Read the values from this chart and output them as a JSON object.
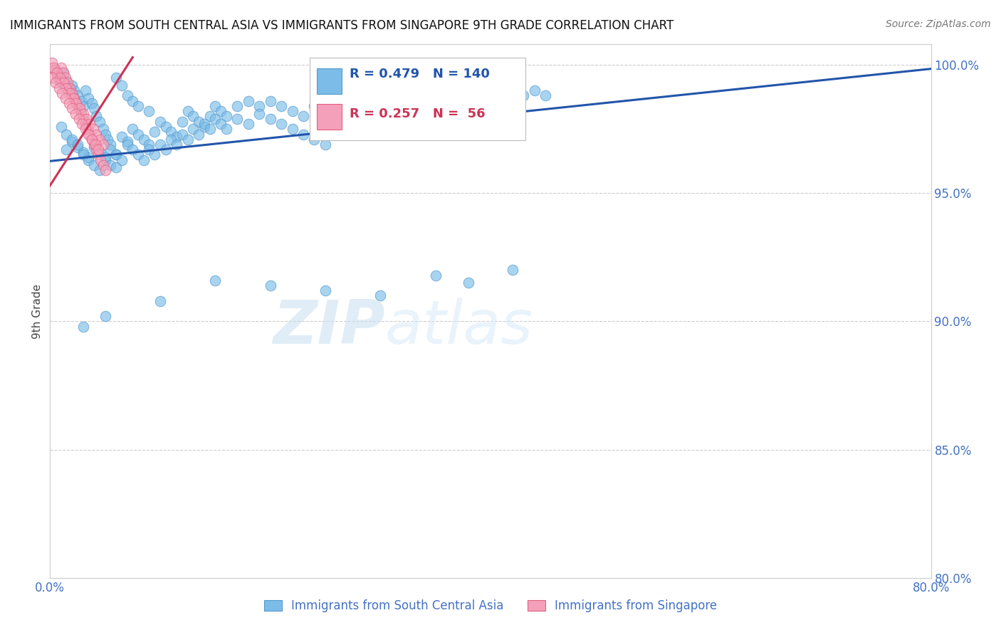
{
  "title": "IMMIGRANTS FROM SOUTH CENTRAL ASIA VS IMMIGRANTS FROM SINGAPORE 9TH GRADE CORRELATION CHART",
  "source": "Source: ZipAtlas.com",
  "ylabel": "9th Grade",
  "xmin": 0.0,
  "xmax": 0.8,
  "ymin": 0.8,
  "ymax": 1.008,
  "yticks": [
    0.8,
    0.85,
    0.9,
    0.95,
    1.0
  ],
  "yticklabels": [
    "80.0%",
    "85.0%",
    "90.0%",
    "95.0%",
    "100.0%"
  ],
  "legend_blue_label": "Immigrants from South Central Asia",
  "legend_pink_label": "Immigrants from Singapore",
  "R_blue": 0.479,
  "N_blue": 140,
  "R_pink": 0.257,
  "N_pink": 56,
  "blue_color": "#7bbde8",
  "pink_color": "#f5a0ba",
  "blue_edge_color": "#5599cc",
  "pink_edge_color": "#e06080",
  "blue_line_color": "#2255aa",
  "pink_line_color": "#cc3355",
  "axis_color": "#4472c4",
  "watermark_color": "#ddeeff",
  "blue_line_x0": 0.0,
  "blue_line_x1": 0.8,
  "blue_line_y0": 0.9625,
  "blue_line_y1": 0.9985,
  "pink_line_x0": 0.0,
  "pink_line_x1": 0.075,
  "pink_line_y0": 0.953,
  "pink_line_y1": 1.003,
  "blue_dots_x": [
    0.005,
    0.008,
    0.01,
    0.012,
    0.015,
    0.018,
    0.02,
    0.022,
    0.025,
    0.028,
    0.03,
    0.032,
    0.035,
    0.038,
    0.04,
    0.042,
    0.045,
    0.048,
    0.05,
    0.052,
    0.055,
    0.06,
    0.065,
    0.07,
    0.075,
    0.08,
    0.09,
    0.01,
    0.015,
    0.02,
    0.025,
    0.03,
    0.035,
    0.04,
    0.045,
    0.05,
    0.055,
    0.06,
    0.065,
    0.07,
    0.075,
    0.08,
    0.085,
    0.09,
    0.095,
    0.1,
    0.105,
    0.11,
    0.115,
    0.12,
    0.125,
    0.13,
    0.135,
    0.14,
    0.145,
    0.15,
    0.155,
    0.16,
    0.17,
    0.18,
    0.19,
    0.2,
    0.21,
    0.22,
    0.23,
    0.24,
    0.25,
    0.26,
    0.27,
    0.28,
    0.29,
    0.3,
    0.31,
    0.32,
    0.33,
    0.34,
    0.35,
    0.36,
    0.37,
    0.38,
    0.39,
    0.4,
    0.41,
    0.42,
    0.43,
    0.44,
    0.015,
    0.02,
    0.025,
    0.03,
    0.035,
    0.04,
    0.045,
    0.05,
    0.055,
    0.06,
    0.065,
    0.07,
    0.075,
    0.08,
    0.085,
    0.09,
    0.095,
    0.1,
    0.105,
    0.11,
    0.115,
    0.12,
    0.125,
    0.13,
    0.135,
    0.14,
    0.145,
    0.15,
    0.155,
    0.16,
    0.17,
    0.18,
    0.19,
    0.2,
    0.21,
    0.22,
    0.23,
    0.24,
    0.25,
    0.3,
    0.35,
    0.4,
    0.06,
    0.45,
    0.42,
    0.38,
    0.35,
    0.3,
    0.25,
    0.2,
    0.15,
    0.1,
    0.05,
    0.03
  ],
  "blue_dots_y": [
    0.998,
    0.995,
    0.993,
    0.997,
    0.994,
    0.991,
    0.992,
    0.99,
    0.988,
    0.986,
    0.984,
    0.99,
    0.987,
    0.985,
    0.983,
    0.98,
    0.978,
    0.975,
    0.973,
    0.971,
    0.969,
    0.995,
    0.992,
    0.988,
    0.986,
    0.984,
    0.982,
    0.976,
    0.973,
    0.97,
    0.968,
    0.966,
    0.964,
    0.968,
    0.966,
    0.964,
    0.967,
    0.965,
    0.972,
    0.97,
    0.975,
    0.973,
    0.971,
    0.969,
    0.974,
    0.978,
    0.976,
    0.974,
    0.972,
    0.978,
    0.982,
    0.98,
    0.978,
    0.976,
    0.98,
    0.984,
    0.982,
    0.98,
    0.984,
    0.986,
    0.984,
    0.986,
    0.984,
    0.982,
    0.98,
    0.984,
    0.986,
    0.984,
    0.982,
    0.984,
    0.982,
    0.988,
    0.986,
    0.984,
    0.982,
    0.986,
    0.988,
    0.986,
    0.984,
    0.988,
    0.986,
    0.99,
    0.988,
    0.986,
    0.988,
    0.99,
    0.967,
    0.971,
    0.969,
    0.965,
    0.963,
    0.961,
    0.959,
    0.963,
    0.961,
    0.965,
    0.963,
    0.969,
    0.967,
    0.965,
    0.963,
    0.967,
    0.965,
    0.969,
    0.967,
    0.971,
    0.969,
    0.973,
    0.971,
    0.975,
    0.973,
    0.977,
    0.975,
    0.979,
    0.977,
    0.975,
    0.979,
    0.977,
    0.981,
    0.979,
    0.977,
    0.975,
    0.973,
    0.971,
    0.969,
    0.975,
    0.979,
    0.981,
    0.96,
    0.988,
    0.92,
    0.915,
    0.918,
    0.91,
    0.912,
    0.914,
    0.916,
    0.908,
    0.902,
    0.898
  ],
  "pink_dots_x": [
    0.002,
    0.004,
    0.006,
    0.008,
    0.01,
    0.012,
    0.014,
    0.016,
    0.018,
    0.02,
    0.022,
    0.024,
    0.026,
    0.028,
    0.03,
    0.032,
    0.034,
    0.036,
    0.038,
    0.04,
    0.042,
    0.044,
    0.046,
    0.048,
    0.05,
    0.003,
    0.006,
    0.009,
    0.012,
    0.015,
    0.018,
    0.021,
    0.024,
    0.027,
    0.03,
    0.033,
    0.036,
    0.039,
    0.042,
    0.045,
    0.048,
    0.002,
    0.005,
    0.008,
    0.011,
    0.014,
    0.017,
    0.02,
    0.023,
    0.026,
    0.029,
    0.032,
    0.035,
    0.038,
    0.041,
    0.044
  ],
  "pink_dots_y": [
    1.001,
    0.998,
    0.996,
    0.994,
    0.999,
    0.997,
    0.995,
    0.993,
    0.991,
    0.989,
    0.987,
    0.985,
    0.983,
    0.981,
    0.979,
    0.977,
    0.975,
    0.973,
    0.971,
    0.969,
    0.967,
    0.965,
    0.963,
    0.961,
    0.959,
    0.999,
    0.997,
    0.995,
    0.993,
    0.991,
    0.989,
    0.987,
    0.985,
    0.983,
    0.981,
    0.979,
    0.977,
    0.975,
    0.973,
    0.971,
    0.969,
    0.995,
    0.993,
    0.991,
    0.989,
    0.987,
    0.985,
    0.983,
    0.981,
    0.979,
    0.977,
    0.975,
    0.973,
    0.971,
    0.969,
    0.967
  ]
}
